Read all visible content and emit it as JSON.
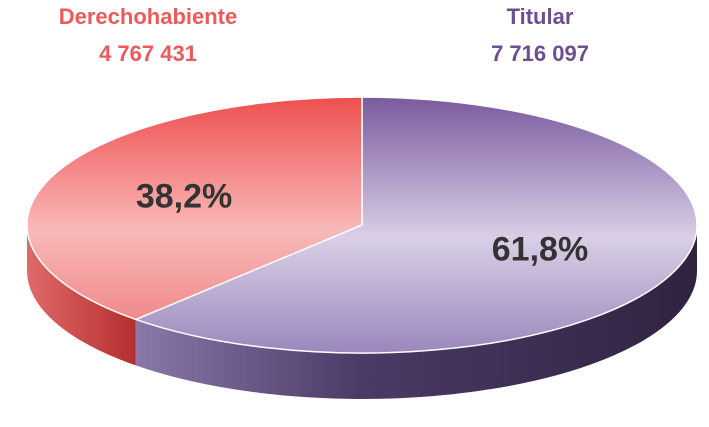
{
  "chart_data": {
    "type": "pie3d",
    "categories": [
      "Derechohabiente",
      "Titular"
    ],
    "values": [
      38.2,
      61.8
    ],
    "value_labels": [
      "38,2%",
      "61,8%"
    ],
    "counts": [
      4767431,
      7716097
    ],
    "count_labels": [
      "4 767 431",
      "7 716 097"
    ],
    "colors": [
      "#ef5555",
      "#7e5fa2"
    ]
  }
}
